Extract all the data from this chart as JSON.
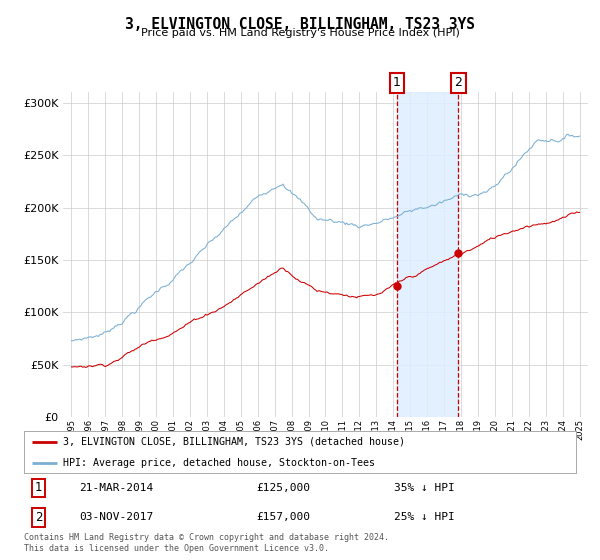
{
  "title": "3, ELVINGTON CLOSE, BILLINGHAM, TS23 3YS",
  "subtitle": "Price paid vs. HM Land Registry's House Price Index (HPI)",
  "legend_house": "3, ELVINGTON CLOSE, BILLINGHAM, TS23 3YS (detached house)",
  "legend_hpi": "HPI: Average price, detached house, Stockton-on-Tees",
  "transaction1_date": "21-MAR-2014",
  "transaction1_price": 125000,
  "transaction1_label": "£125,000",
  "transaction1_pct": "35% ↓ HPI",
  "transaction2_date": "03-NOV-2017",
  "transaction2_price": 157000,
  "transaction2_label": "£157,000",
  "transaction2_pct": "25% ↓ HPI",
  "footer": "Contains HM Land Registry data © Crown copyright and database right 2024.\nThis data is licensed under the Open Government Licence v3.0.",
  "house_color": "#cc0000",
  "hpi_color": "#7bafd4",
  "span_color": "#ddeeff",
  "background_color": "#ffffff",
  "grid_color": "#cccccc",
  "ylim": [
    0,
    310000
  ],
  "yticks": [
    0,
    50000,
    100000,
    150000,
    200000,
    250000,
    300000
  ],
  "start_year": 1995,
  "end_year": 2025,
  "transaction1_year": 2014.22,
  "transaction2_year": 2017.84
}
